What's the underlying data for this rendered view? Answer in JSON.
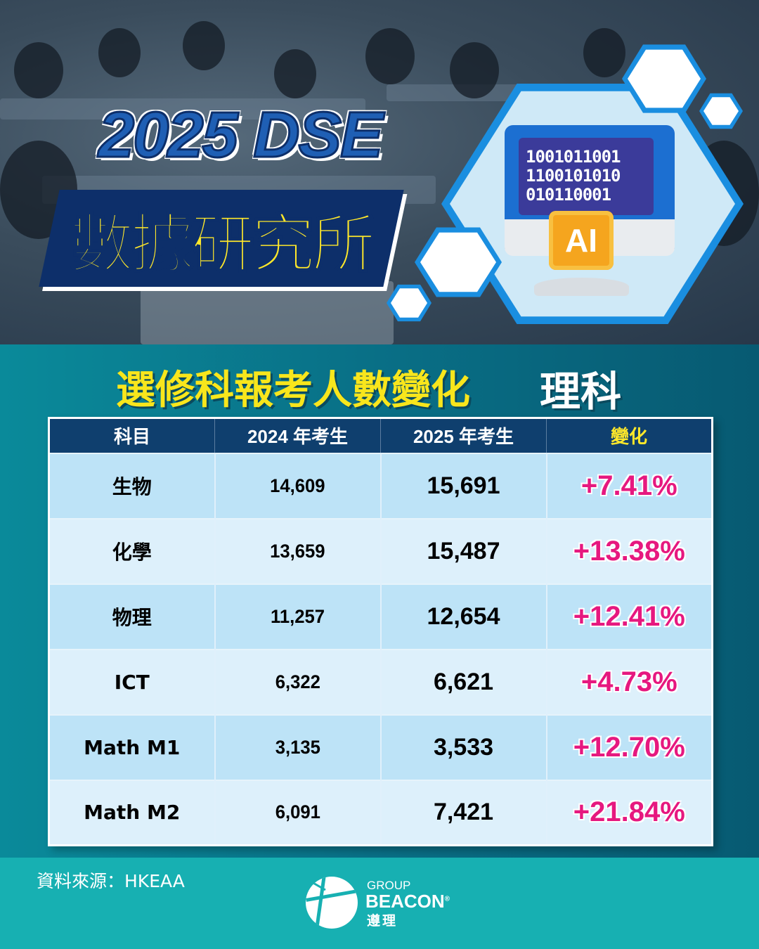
{
  "header": {
    "title_line1": "2025 DSE",
    "title_line2": "數據研究所"
  },
  "illustration": {
    "binary": [
      "1001011001",
      "1100101010",
      "010110001"
    ],
    "chip_label": "AI"
  },
  "subtitle": {
    "main": "選修科報考人數變化",
    "category": "理科"
  },
  "table": {
    "headers": [
      "科目",
      "2024 年考生",
      "2025 年考生",
      "變化"
    ],
    "rows": [
      [
        "生物",
        "14,609",
        "15,691",
        "+7.41%"
      ],
      [
        "化學",
        "13,659",
        "15,487",
        "+13.38%"
      ],
      [
        "物理",
        "11,257",
        "12,654",
        "+12.41%"
      ],
      [
        "ICT",
        "6,322",
        "6,621",
        "+4.73%"
      ],
      [
        "Math M1",
        "3,135",
        "3,533",
        "+12.70%"
      ],
      [
        "Math M2",
        "6,091",
        "7,421",
        "+21.84%"
      ]
    ]
  },
  "footer": {
    "source": "資料來源：HKEAA",
    "logo": {
      "group": "GROUP",
      "brand": "BEACON",
      "reg": "®",
      "chinese": "遵理"
    }
  },
  "colors": {
    "header_bg": "#0f3f6e",
    "change_text": "#e6187f",
    "title_yellow": "#ffe82a",
    "footer_bg": "#17b0b2"
  }
}
